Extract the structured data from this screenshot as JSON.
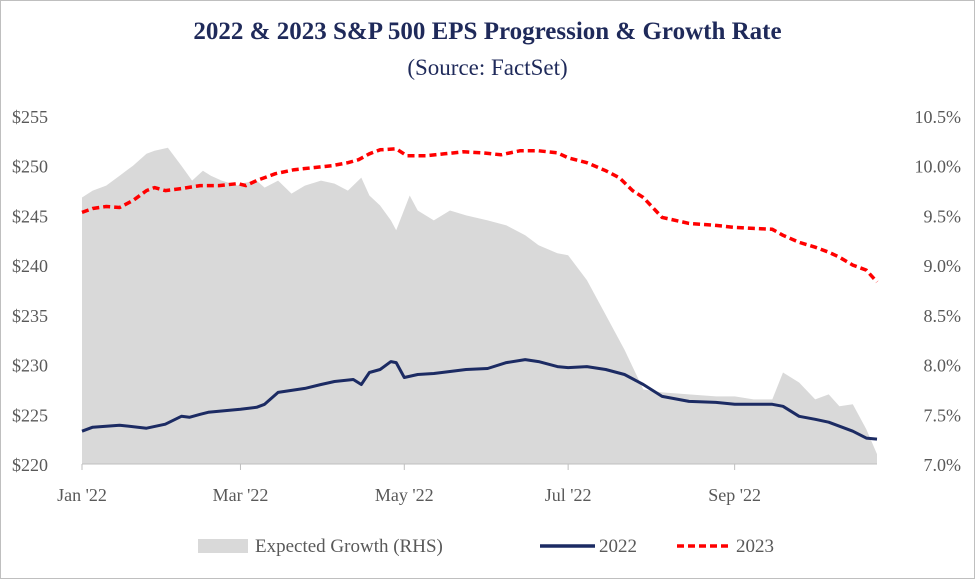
{
  "chart_data": {
    "type": "line",
    "title": "2022 & 2023 S&P 500 EPS Progression & Growth Rate",
    "subtitle": "(Source: FactSet)",
    "x_range": [
      "2022-01-01",
      "2022-10-24"
    ],
    "x_ticks": [
      "Jan '22",
      "Mar '22",
      "May '22",
      "Jul '22",
      "Sep '22"
    ],
    "x_tick_dates": [
      "2022-01-01",
      "2022-03-01",
      "2022-05-01",
      "2022-07-01",
      "2022-09-01"
    ],
    "y_left": {
      "min": 220,
      "max": 255,
      "step": 5,
      "format": "$",
      "ticks": [
        "$220",
        "$225",
        "$230",
        "$235",
        "$240",
        "$245",
        "$250",
        "$255"
      ]
    },
    "y_right": {
      "min": 7.0,
      "max": 10.5,
      "step": 0.5,
      "ticks": [
        "7.0%",
        "7.5%",
        "8.0%",
        "8.5%",
        "9.0%",
        "9.5%",
        "10.0%",
        "10.5%"
      ]
    },
    "grid": false,
    "legend": {
      "position": "bottom"
    },
    "series": [
      {
        "name": "Expected Growth (RHS)",
        "kind": "area",
        "axis": "right",
        "color": "#d9d9d9",
        "x": [
          "2022-01-01",
          "2022-01-05",
          "2022-01-10",
          "2022-01-15",
          "2022-01-20",
          "2022-01-25",
          "2022-01-28",
          "2022-02-02",
          "2022-02-07",
          "2022-02-11",
          "2022-02-15",
          "2022-02-18",
          "2022-02-22",
          "2022-02-28",
          "2022-03-01",
          "2022-03-07",
          "2022-03-10",
          "2022-03-15",
          "2022-03-20",
          "2022-03-25",
          "2022-03-31",
          "2022-04-05",
          "2022-04-10",
          "2022-04-15",
          "2022-04-18",
          "2022-04-22",
          "2022-04-26",
          "2022-04-28",
          "2022-05-03",
          "2022-05-06",
          "2022-05-12",
          "2022-05-18",
          "2022-05-24",
          "2022-06-01",
          "2022-06-08",
          "2022-06-15",
          "2022-06-20",
          "2022-06-27",
          "2022-07-01",
          "2022-07-08",
          "2022-07-15",
          "2022-07-22",
          "2022-07-29",
          "2022-08-05",
          "2022-08-15",
          "2022-08-25",
          "2022-09-01",
          "2022-09-08",
          "2022-09-15",
          "2022-09-19",
          "2022-09-25",
          "2022-10-01",
          "2022-10-06",
          "2022-10-10",
          "2022-10-15",
          "2022-10-20",
          "2022-10-24"
        ],
        "values": [
          9.68,
          9.75,
          9.8,
          9.9,
          10.0,
          10.12,
          10.15,
          10.18,
          10.0,
          9.85,
          9.95,
          9.9,
          9.85,
          9.8,
          9.82,
          9.85,
          9.78,
          9.85,
          9.72,
          9.8,
          9.85,
          9.82,
          9.75,
          9.88,
          9.7,
          9.6,
          9.45,
          9.35,
          9.7,
          9.55,
          9.45,
          9.55,
          9.5,
          9.45,
          9.4,
          9.3,
          9.2,
          9.12,
          9.1,
          8.85,
          8.5,
          8.15,
          7.75,
          7.72,
          7.7,
          7.68,
          7.68,
          7.65,
          7.65,
          7.92,
          7.82,
          7.65,
          7.7,
          7.58,
          7.6,
          7.35,
          7.1
        ]
      },
      {
        "name": "2022",
        "kind": "line",
        "axis": "left",
        "color": "#1c2b63",
        "x": [
          "2022-01-01",
          "2022-01-05",
          "2022-01-15",
          "2022-01-25",
          "2022-02-01",
          "2022-02-07",
          "2022-02-10",
          "2022-02-14",
          "2022-02-17",
          "2022-02-25",
          "2022-03-01",
          "2022-03-07",
          "2022-03-10",
          "2022-03-15",
          "2022-03-20",
          "2022-03-25",
          "2022-03-31",
          "2022-04-05",
          "2022-04-12",
          "2022-04-15",
          "2022-04-18",
          "2022-04-22",
          "2022-04-26",
          "2022-04-28",
          "2022-05-01",
          "2022-05-06",
          "2022-05-12",
          "2022-05-18",
          "2022-05-24",
          "2022-06-01",
          "2022-06-08",
          "2022-06-15",
          "2022-06-20",
          "2022-06-27",
          "2022-07-01",
          "2022-07-08",
          "2022-07-15",
          "2022-07-22",
          "2022-07-29",
          "2022-08-05",
          "2022-08-15",
          "2022-08-25",
          "2022-09-01",
          "2022-09-08",
          "2022-09-15",
          "2022-09-19",
          "2022-09-25",
          "2022-10-01",
          "2022-10-06",
          "2022-10-10",
          "2022-10-15",
          "2022-10-20",
          "2022-10-24"
        ],
        "values": [
          223.3,
          223.7,
          223.9,
          223.6,
          224.0,
          224.8,
          224.7,
          225.0,
          225.2,
          225.4,
          225.5,
          225.7,
          226.0,
          227.2,
          227.4,
          227.6,
          228.0,
          228.3,
          228.5,
          228.0,
          229.2,
          229.5,
          230.3,
          230.2,
          228.7,
          229.0,
          229.1,
          229.3,
          229.5,
          229.6,
          230.2,
          230.5,
          230.3,
          229.8,
          229.7,
          229.8,
          229.5,
          229.0,
          228.0,
          226.8,
          226.3,
          226.2,
          226.0,
          226.0,
          226.0,
          225.8,
          224.8,
          224.5,
          224.2,
          223.8,
          223.3,
          222.6,
          222.5
        ]
      },
      {
        "name": "2023",
        "kind": "line",
        "style": "dashed",
        "axis": "left",
        "color": "#ff0000",
        "x": [
          "2022-01-01",
          "2022-01-05",
          "2022-01-10",
          "2022-01-15",
          "2022-01-20",
          "2022-01-25",
          "2022-01-28",
          "2022-02-01",
          "2022-02-07",
          "2022-02-14",
          "2022-02-21",
          "2022-02-28",
          "2022-03-03",
          "2022-03-07",
          "2022-03-14",
          "2022-03-21",
          "2022-03-28",
          "2022-04-04",
          "2022-04-10",
          "2022-04-14",
          "2022-04-18",
          "2022-04-22",
          "2022-04-28",
          "2022-05-02",
          "2022-05-09",
          "2022-05-16",
          "2022-05-23",
          "2022-05-30",
          "2022-06-06",
          "2022-06-13",
          "2022-06-20",
          "2022-06-27",
          "2022-07-01",
          "2022-07-08",
          "2022-07-15",
          "2022-07-20",
          "2022-07-25",
          "2022-07-29",
          "2022-08-05",
          "2022-08-15",
          "2022-08-25",
          "2022-09-01",
          "2022-09-08",
          "2022-09-15",
          "2022-09-19",
          "2022-09-25",
          "2022-10-01",
          "2022-10-06",
          "2022-10-10",
          "2022-10-15",
          "2022-10-20",
          "2022-10-24"
        ],
        "values": [
          245.3,
          245.7,
          245.9,
          245.8,
          246.5,
          247.5,
          247.8,
          247.5,
          247.7,
          248.0,
          248.0,
          248.2,
          248.0,
          248.5,
          249.2,
          249.6,
          249.8,
          250.0,
          250.3,
          250.6,
          251.2,
          251.6,
          251.7,
          251.0,
          251.0,
          251.2,
          251.4,
          251.3,
          251.1,
          251.5,
          251.5,
          251.3,
          250.8,
          250.3,
          249.5,
          248.8,
          247.5,
          246.8,
          244.8,
          244.2,
          244.0,
          243.8,
          243.7,
          243.6,
          243.0,
          242.3,
          241.8,
          241.3,
          240.8,
          240.0,
          239.5,
          238.3
        ]
      }
    ]
  }
}
